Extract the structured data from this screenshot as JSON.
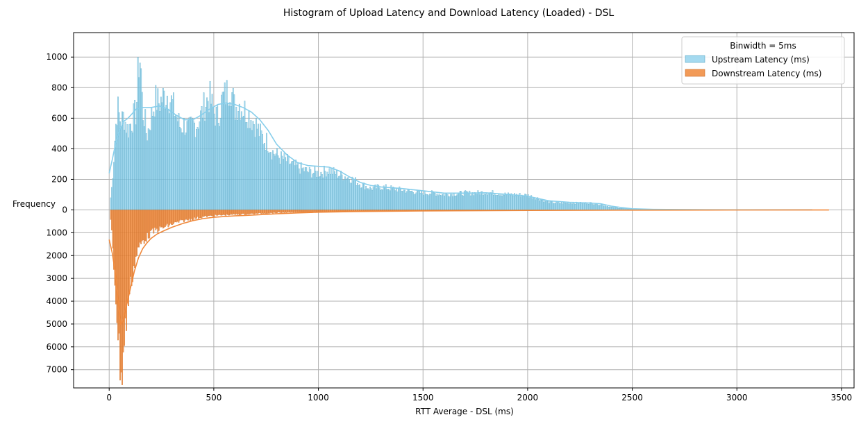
{
  "chart_data": {
    "type": "histogram",
    "title": "Histogram of Upload Latency and Download Latency (Loaded)  - DSL",
    "xlabel": "RTT Average - DSL (ms)",
    "ylabel": "Frequency",
    "xlim": [
      -170,
      3560
    ],
    "xticks": [
      0,
      500,
      1000,
      1500,
      2000,
      2500,
      3000,
      3500
    ],
    "upper_ylim": [
      0,
      1160
    ],
    "upper_yticks": [
      0,
      200,
      400,
      600,
      800,
      1000
    ],
    "lower_ylim": [
      0,
      7800
    ],
    "lower_yticks": [
      1000,
      2000,
      3000,
      4000,
      5000,
      6000,
      7000
    ],
    "grid": true,
    "binwidth": 5,
    "legend": {
      "title": "Binwidth = 5ms",
      "location": "upper right",
      "entries": [
        "Upstream Latency (ms)",
        "Downstream Latency (ms)"
      ]
    },
    "series": [
      {
        "name": "Upstream Latency (ms)",
        "color": "#87CEEB",
        "edge_color": "#5aa7c4",
        "kde_color": "#87CEEB",
        "direction": "up",
        "range": [
          5,
          3360
        ],
        "points": [
          [
            0,
            20
          ],
          [
            10,
            100
          ],
          [
            20,
            280
          ],
          [
            30,
            520
          ],
          [
            40,
            680
          ],
          [
            50,
            600
          ],
          [
            60,
            580
          ],
          [
            70,
            620
          ],
          [
            80,
            560
          ],
          [
            90,
            520
          ],
          [
            100,
            560
          ],
          [
            110,
            580
          ],
          [
            120,
            620
          ],
          [
            130,
            640
          ],
          [
            140,
            950
          ],
          [
            150,
            1000
          ],
          [
            160,
            640
          ],
          [
            170,
            600
          ],
          [
            180,
            480
          ],
          [
            200,
            600
          ],
          [
            220,
            720
          ],
          [
            240,
            700
          ],
          [
            260,
            740
          ],
          [
            280,
            760
          ],
          [
            300,
            700
          ],
          [
            320,
            620
          ],
          [
            340,
            540
          ],
          [
            360,
            560
          ],
          [
            380,
            520
          ],
          [
            400,
            560
          ],
          [
            420,
            560
          ],
          [
            440,
            620
          ],
          [
            460,
            700
          ],
          [
            480,
            740
          ],
          [
            500,
            640
          ],
          [
            520,
            600
          ],
          [
            540,
            720
          ],
          [
            560,
            760
          ],
          [
            580,
            820
          ],
          [
            600,
            660
          ],
          [
            620,
            700
          ],
          [
            640,
            660
          ],
          [
            660,
            640
          ],
          [
            680,
            600
          ],
          [
            700,
            560
          ],
          [
            720,
            500
          ],
          [
            740,
            460
          ],
          [
            760,
            440
          ],
          [
            780,
            380
          ],
          [
            800,
            360
          ],
          [
            820,
            340
          ],
          [
            850,
            320
          ],
          [
            880,
            290
          ],
          [
            900,
            280
          ],
          [
            950,
            250
          ],
          [
            1000,
            240
          ],
          [
            1050,
            260
          ],
          [
            1100,
            230
          ],
          [
            1150,
            210
          ],
          [
            1200,
            170
          ],
          [
            1250,
            140
          ],
          [
            1300,
            150
          ],
          [
            1350,
            140
          ],
          [
            1400,
            130
          ],
          [
            1450,
            120
          ],
          [
            1500,
            110
          ],
          [
            1550,
            110
          ],
          [
            1600,
            100
          ],
          [
            1650,
            105
          ],
          [
            1700,
            110
          ],
          [
            1750,
            110
          ],
          [
            1800,
            115
          ],
          [
            1850,
            110
          ],
          [
            1900,
            100
          ],
          [
            1950,
            100
          ],
          [
            2000,
            95
          ],
          [
            2050,
            75
          ],
          [
            2100,
            50
          ],
          [
            2150,
            45
          ],
          [
            2200,
            45
          ],
          [
            2250,
            45
          ],
          [
            2300,
            45
          ],
          [
            2350,
            35
          ],
          [
            2400,
            18
          ],
          [
            2450,
            10
          ],
          [
            2500,
            6
          ],
          [
            2600,
            3
          ],
          [
            2800,
            2
          ],
          [
            3000,
            1
          ],
          [
            3360,
            1
          ]
        ],
        "kde": [
          [
            0,
            240
          ],
          [
            15,
            330
          ],
          [
            30,
            430
          ],
          [
            50,
            520
          ],
          [
            70,
            580
          ],
          [
            90,
            600
          ],
          [
            110,
            630
          ],
          [
            130,
            660
          ],
          [
            160,
            670
          ],
          [
            200,
            670
          ],
          [
            240,
            680
          ],
          [
            280,
            660
          ],
          [
            320,
            620
          ],
          [
            360,
            590
          ],
          [
            400,
            590
          ],
          [
            440,
            620
          ],
          [
            480,
            660
          ],
          [
            520,
            690
          ],
          [
            560,
            700
          ],
          [
            600,
            690
          ],
          [
            640,
            670
          ],
          [
            680,
            640
          ],
          [
            720,
            590
          ],
          [
            760,
            520
          ],
          [
            800,
            430
          ],
          [
            850,
            360
          ],
          [
            900,
            310
          ],
          [
            950,
            290
          ],
          [
            1000,
            285
          ],
          [
            1050,
            280
          ],
          [
            1100,
            255
          ],
          [
            1150,
            215
          ],
          [
            1200,
            180
          ],
          [
            1250,
            160
          ],
          [
            1300,
            150
          ],
          [
            1400,
            140
          ],
          [
            1500,
            125
          ],
          [
            1600,
            110
          ],
          [
            1700,
            110
          ],
          [
            1800,
            112
          ],
          [
            1900,
            102
          ],
          [
            2000,
            90
          ],
          [
            2050,
            75
          ],
          [
            2100,
            60
          ],
          [
            2200,
            50
          ],
          [
            2300,
            45
          ],
          [
            2350,
            40
          ],
          [
            2400,
            25
          ],
          [
            2450,
            15
          ],
          [
            2500,
            8
          ],
          [
            2600,
            4
          ],
          [
            2800,
            2
          ],
          [
            3000,
            1
          ],
          [
            3360,
            1
          ]
        ]
      },
      {
        "name": "Downstream Latency (ms)",
        "color": "#F0883A",
        "edge_color": "#c96a24",
        "kde_color": "#F0883A",
        "direction": "down",
        "range": [
          5,
          3440
        ],
        "points": [
          [
            0,
            100
          ],
          [
            10,
            600
          ],
          [
            20,
            2200
          ],
          [
            30,
            3400
          ],
          [
            40,
            5000
          ],
          [
            50,
            6500
          ],
          [
            60,
            7300
          ],
          [
            70,
            6100
          ],
          [
            80,
            5000
          ],
          [
            90,
            4100
          ],
          [
            100,
            3500
          ],
          [
            110,
            2900
          ],
          [
            120,
            2400
          ],
          [
            130,
            2000
          ],
          [
            140,
            1700
          ],
          [
            150,
            1550
          ],
          [
            160,
            1350
          ],
          [
            180,
            1200
          ],
          [
            200,
            1000
          ],
          [
            220,
            900
          ],
          [
            250,
            800
          ],
          [
            280,
            700
          ],
          [
            300,
            620
          ],
          [
            350,
            480
          ],
          [
            400,
            380
          ],
          [
            450,
            300
          ],
          [
            500,
            250
          ],
          [
            550,
            220
          ],
          [
            600,
            200
          ],
          [
            650,
            180
          ],
          [
            700,
            160
          ],
          [
            800,
            120
          ],
          [
            900,
            100
          ],
          [
            1000,
            80
          ],
          [
            1200,
            60
          ],
          [
            1500,
            40
          ],
          [
            2000,
            20
          ],
          [
            2500,
            10
          ],
          [
            3000,
            4
          ],
          [
            3440,
            2
          ]
        ],
        "kde": [
          [
            0,
            1300
          ],
          [
            15,
            1900
          ],
          [
            30,
            2800
          ],
          [
            45,
            4200
          ],
          [
            55,
            5000
          ],
          [
            65,
            4900
          ],
          [
            80,
            4300
          ],
          [
            100,
            3500
          ],
          [
            120,
            2700
          ],
          [
            140,
            2100
          ],
          [
            160,
            1700
          ],
          [
            180,
            1450
          ],
          [
            200,
            1250
          ],
          [
            230,
            1050
          ],
          [
            260,
            920
          ],
          [
            300,
            760
          ],
          [
            350,
            600
          ],
          [
            400,
            470
          ],
          [
            450,
            380
          ],
          [
            500,
            320
          ],
          [
            550,
            290
          ],
          [
            600,
            260
          ],
          [
            650,
            240
          ],
          [
            700,
            220
          ],
          [
            800,
            170
          ],
          [
            900,
            130
          ],
          [
            1000,
            100
          ],
          [
            1200,
            70
          ],
          [
            1500,
            45
          ],
          [
            2000,
            22
          ],
          [
            2500,
            10
          ],
          [
            3000,
            4
          ],
          [
            3440,
            2
          ]
        ]
      }
    ]
  }
}
